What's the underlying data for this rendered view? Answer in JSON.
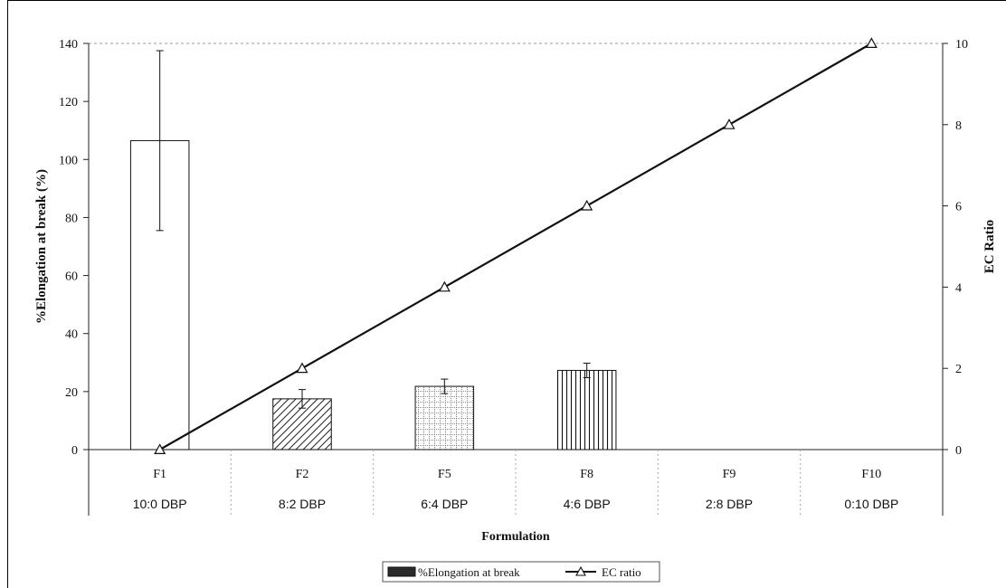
{
  "chart_data": {
    "type": "bar",
    "xlabel": "Formulation",
    "ylabel": "%Elongation at break (%)",
    "y2label": "EC Ratio",
    "ylim": [
      0,
      140
    ],
    "y2lim": [
      0,
      10
    ],
    "yticks": [
      0,
      20,
      40,
      60,
      80,
      100,
      120,
      140
    ],
    "y2ticks": [
      0,
      2,
      4,
      6,
      8,
      10
    ],
    "grid": false,
    "legend_position": "bottom-center",
    "categories": [
      {
        "code": "F1",
        "ratio": "10:0 DBP"
      },
      {
        "code": "F2",
        "ratio": "8:2 DBP"
      },
      {
        "code": "F5",
        "ratio": "6:4 DBP"
      },
      {
        "code": "F8",
        "ratio": "4:6 DBP"
      },
      {
        "code": "F9",
        "ratio": "2:8 DBP"
      },
      {
        "code": "F10",
        "ratio": "0:10 DBP"
      }
    ],
    "series": [
      {
        "name": "%Elongation at break",
        "kind": "bar",
        "axis": "left",
        "values": [
          106.5,
          17.5,
          21.8,
          27.3,
          null,
          null
        ],
        "errors": [
          31,
          3.2,
          2.5,
          2.5,
          null,
          null
        ],
        "patterns": [
          "empty",
          "diagonal",
          "grid",
          "vertical",
          "none",
          "none"
        ]
      },
      {
        "name": "EC ratio",
        "kind": "line",
        "axis": "right",
        "marker": "triangle",
        "values": [
          0,
          2,
          4,
          6,
          8,
          10
        ]
      }
    ]
  }
}
